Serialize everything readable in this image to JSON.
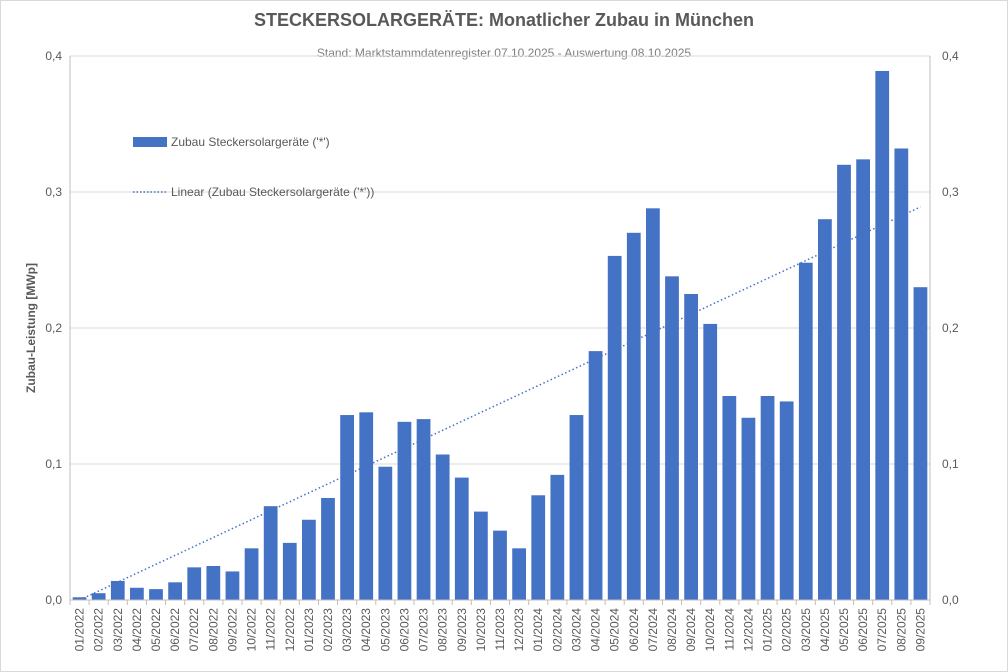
{
  "chart_data": {
    "type": "bar",
    "title": "STECKERSOLARGERÄTE:  Monatlicher Zubau in München",
    "subtitle": "Stand: Marktstammdatenregister 07.10.2025  - Auswertung 08.10.2025",
    "ylabel": "Zubau-Leistung [MWp]",
    "ylim": [
      0,
      0.4
    ],
    "yticks": [
      "0,0",
      "0,1",
      "0,2",
      "0,3",
      "0,4"
    ],
    "ytick_values": [
      0,
      0.1,
      0.2,
      0.3,
      0.4
    ],
    "right_axis": true,
    "grid": true,
    "legend_placement": "top-left",
    "bar_color": "#4472c4",
    "trend_color": "#4472c4",
    "legend": {
      "bar_label": "Zubau Steckersolargeräte ('*')",
      "trend_label": "Linear (Zubau Steckersolargeräte ('*'))"
    },
    "categories": [
      "01/2022",
      "02/2022",
      "03/2022",
      "04/2022",
      "05/2022",
      "06/2022",
      "07/2022",
      "08/2022",
      "09/2022",
      "10/2022",
      "11/2022",
      "12/2022",
      "01/2023",
      "02/2023",
      "03/2023",
      "04/2023",
      "05/2023",
      "06/2023",
      "07/2023",
      "08/2023",
      "09/2023",
      "10/2023",
      "11/2023",
      "12/2023",
      "01/2024",
      "02/2024",
      "03/2024",
      "04/2024",
      "05/2024",
      "06/2024",
      "07/2024",
      "08/2024",
      "09/2024",
      "10/2024",
      "11/2024",
      "12/2024",
      "01/2025",
      "02/2025",
      "03/2025",
      "04/2025",
      "05/2025",
      "06/2025",
      "07/2025",
      "08/2025",
      "09/2025"
    ],
    "values": [
      0.002,
      0.005,
      0.014,
      0.009,
      0.008,
      0.013,
      0.024,
      0.025,
      0.021,
      0.038,
      0.069,
      0.042,
      0.059,
      0.075,
      0.136,
      0.138,
      0.098,
      0.131,
      0.133,
      0.107,
      0.09,
      0.065,
      0.051,
      0.038,
      0.077,
      0.092,
      0.136,
      0.183,
      0.253,
      0.27,
      0.288,
      0.238,
      0.225,
      0.203,
      0.15,
      0.134,
      0.15,
      0.146,
      0.248,
      0.28,
      0.32,
      0.324,
      0.389,
      0.332,
      0.23
    ],
    "trendline": {
      "type": "linear",
      "start": 0.0,
      "end": 0.289
    }
  }
}
